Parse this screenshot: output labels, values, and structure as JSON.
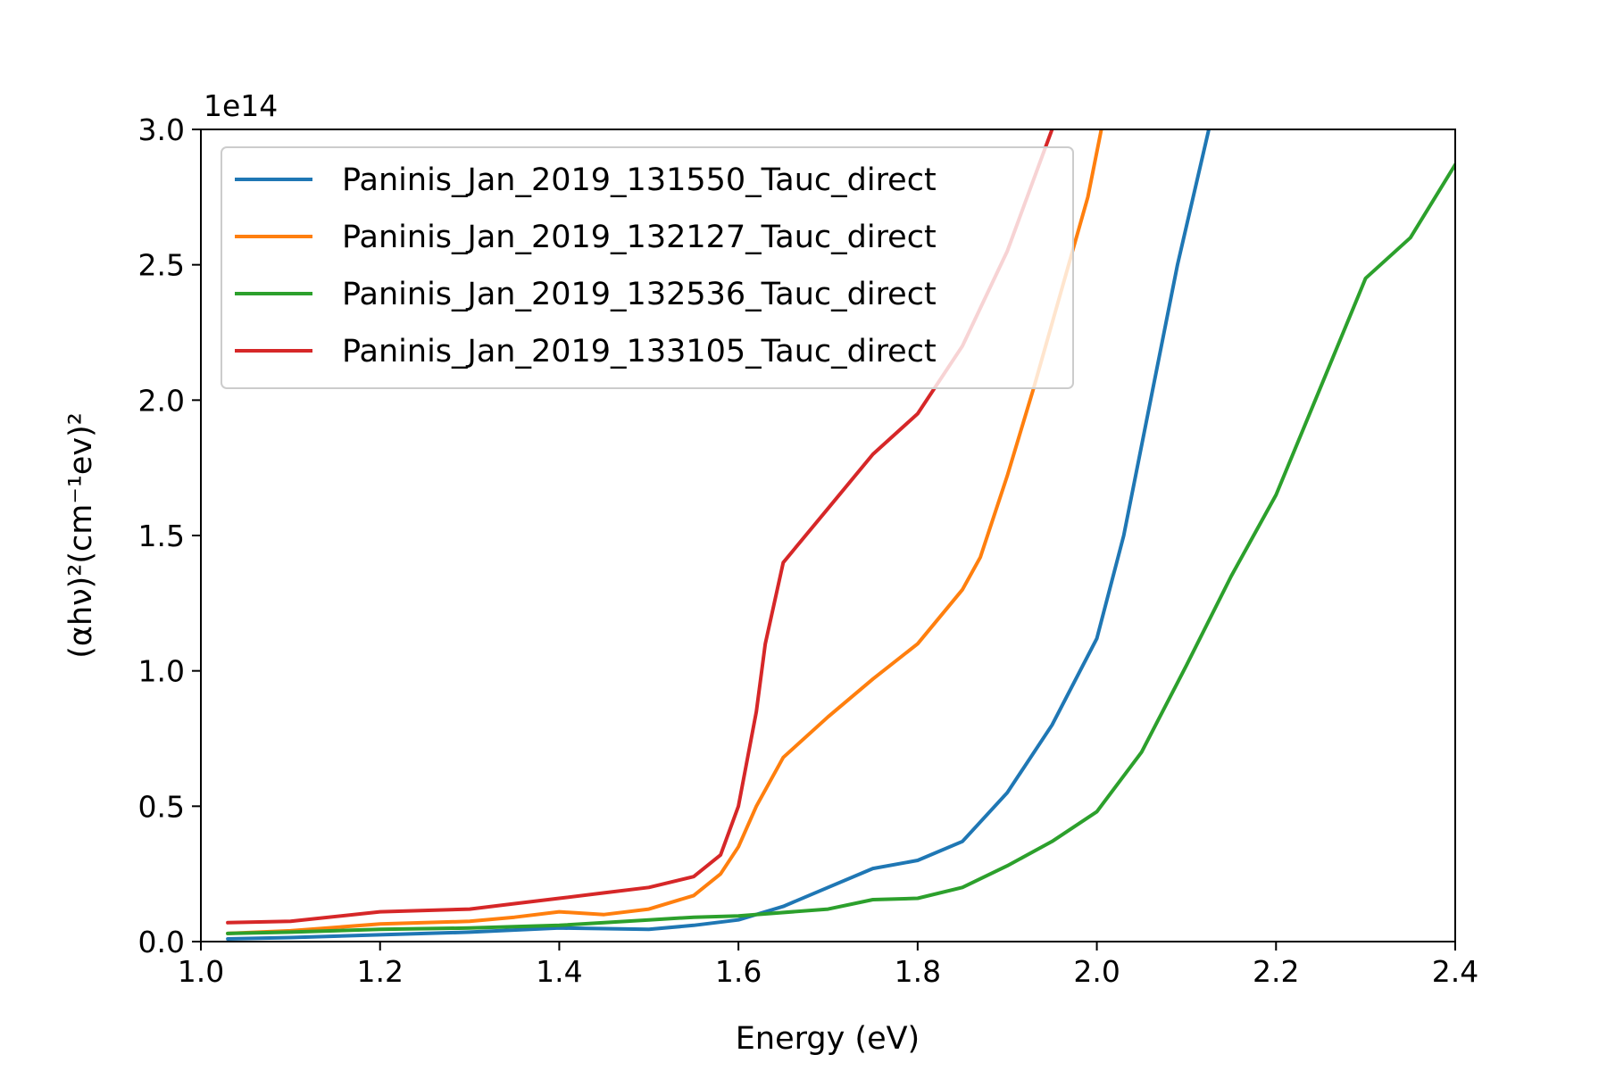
{
  "chart_data": {
    "type": "line",
    "title": "",
    "xlabel": "Energy (eV)",
    "ylabel": "(αhν)²(cm⁻¹ev)²",
    "y_offset_label": "1e14",
    "xlim": [
      1.0,
      2.4
    ],
    "ylim": [
      0.0,
      3.0
    ],
    "x_ticks": [
      "1.0",
      "1.2",
      "1.4",
      "1.6",
      "1.8",
      "2.0",
      "2.2",
      "2.4"
    ],
    "y_ticks": [
      "0.0",
      "0.5",
      "1.0",
      "1.5",
      "2.0",
      "2.5",
      "3.0"
    ],
    "grid": false,
    "legend_position": "upper-left",
    "series": [
      {
        "name": "Paninis_Jan_2019_131550_Tauc_direct",
        "color": "#1f77b4",
        "points": [
          [
            1.03,
            0.01
          ],
          [
            1.1,
            0.015
          ],
          [
            1.2,
            0.025
          ],
          [
            1.3,
            0.035
          ],
          [
            1.4,
            0.05
          ],
          [
            1.5,
            0.045
          ],
          [
            1.55,
            0.06
          ],
          [
            1.6,
            0.08
          ],
          [
            1.65,
            0.13
          ],
          [
            1.7,
            0.2
          ],
          [
            1.75,
            0.27
          ],
          [
            1.8,
            0.3
          ],
          [
            1.85,
            0.37
          ],
          [
            1.9,
            0.55
          ],
          [
            1.95,
            0.8
          ],
          [
            2.0,
            1.12
          ],
          [
            2.03,
            1.5
          ],
          [
            2.06,
            2.0
          ],
          [
            2.09,
            2.5
          ],
          [
            2.125,
            3.0
          ]
        ]
      },
      {
        "name": "Paninis_Jan_2019_132127_Tauc_direct",
        "color": "#ff7f0e",
        "points": [
          [
            1.03,
            0.03
          ],
          [
            1.1,
            0.04
          ],
          [
            1.2,
            0.065
          ],
          [
            1.3,
            0.075
          ],
          [
            1.35,
            0.09
          ],
          [
            1.4,
            0.11
          ],
          [
            1.45,
            0.1
          ],
          [
            1.5,
            0.12
          ],
          [
            1.55,
            0.17
          ],
          [
            1.58,
            0.25
          ],
          [
            1.6,
            0.35
          ],
          [
            1.62,
            0.5
          ],
          [
            1.65,
            0.68
          ],
          [
            1.7,
            0.83
          ],
          [
            1.75,
            0.97
          ],
          [
            1.8,
            1.1
          ],
          [
            1.85,
            1.3
          ],
          [
            1.87,
            1.42
          ],
          [
            1.9,
            1.72
          ],
          [
            1.93,
            2.05
          ],
          [
            1.96,
            2.4
          ],
          [
            1.99,
            2.75
          ],
          [
            2.005,
            3.0
          ]
        ]
      },
      {
        "name": "Paninis_Jan_2019_132536_Tauc_direct",
        "color": "#2ca02c",
        "points": [
          [
            1.03,
            0.03
          ],
          [
            1.1,
            0.035
          ],
          [
            1.2,
            0.045
          ],
          [
            1.3,
            0.05
          ],
          [
            1.4,
            0.06
          ],
          [
            1.5,
            0.08
          ],
          [
            1.55,
            0.09
          ],
          [
            1.6,
            0.095
          ],
          [
            1.7,
            0.12
          ],
          [
            1.75,
            0.155
          ],
          [
            1.8,
            0.16
          ],
          [
            1.85,
            0.2
          ],
          [
            1.9,
            0.28
          ],
          [
            1.95,
            0.37
          ],
          [
            2.0,
            0.48
          ],
          [
            2.05,
            0.7
          ],
          [
            2.1,
            1.02
          ],
          [
            2.15,
            1.35
          ],
          [
            2.2,
            1.65
          ],
          [
            2.25,
            2.05
          ],
          [
            2.3,
            2.45
          ],
          [
            2.35,
            2.6
          ],
          [
            2.4,
            2.87
          ]
        ]
      },
      {
        "name": "Paninis_Jan_2019_133105_Tauc_direct",
        "color": "#d62728",
        "points": [
          [
            1.03,
            0.07
          ],
          [
            1.1,
            0.075
          ],
          [
            1.2,
            0.11
          ],
          [
            1.3,
            0.12
          ],
          [
            1.35,
            0.14
          ],
          [
            1.4,
            0.16
          ],
          [
            1.45,
            0.18
          ],
          [
            1.5,
            0.2
          ],
          [
            1.55,
            0.24
          ],
          [
            1.58,
            0.32
          ],
          [
            1.6,
            0.5
          ],
          [
            1.62,
            0.85
          ],
          [
            1.63,
            1.1
          ],
          [
            1.65,
            1.4
          ],
          [
            1.7,
            1.6
          ],
          [
            1.75,
            1.8
          ],
          [
            1.8,
            1.95
          ],
          [
            1.85,
            2.2
          ],
          [
            1.9,
            2.55
          ],
          [
            1.95,
            3.0
          ]
        ]
      }
    ]
  }
}
